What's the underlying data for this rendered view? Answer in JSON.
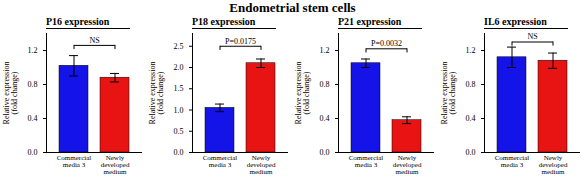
{
  "title": "Endometrial stem cells",
  "chart_data": [
    {
      "type": "bar",
      "title": "P16 expression",
      "ylabel": "Relative expression\n(fold change)",
      "categories": [
        "Commercial\nmedia 3",
        "Newly\ndeveloped\nmedium"
      ],
      "values": [
        1.02,
        0.88
      ],
      "errors": [
        0.12,
        0.05
      ],
      "colors": [
        "#1414e8",
        "#e81414"
      ],
      "ylim": [
        0,
        1.4
      ],
      "yticks": [
        {
          "value": 0.0,
          "label": "0.0"
        },
        0.4,
        0.8,
        1.2
      ],
      "grid": false,
      "annotations": [
        {
          "text": "NS",
          "y": 1.29,
          "line_y": 1.26
        }
      ]
    },
    {
      "type": "bar",
      "title": "P18 expression",
      "ylabel": "Relative expression\n(fold change)",
      "categories": [
        "Commercial\nmedia 3",
        "Newly\ndeveloped\nmedium"
      ],
      "values": [
        1.05,
        2.1
      ],
      "errors": [
        0.09,
        0.1
      ],
      "colors": [
        "#1414e8",
        "#e81414"
      ],
      "ylim": [
        0,
        2.8
      ],
      "yticks": [
        {
          "value": 0.0,
          "label": "0.0"
        },
        0.5,
        {
          "value": 1.0,
          "label": "1.0"
        },
        1.5,
        {
          "value": 2.0,
          "label": "2.0"
        },
        2.5
      ],
      "grid": false,
      "annotations": [
        {
          "text": "P=0.0175",
          "y": 2.55,
          "line_y": 2.5
        }
      ]
    },
    {
      "type": "bar",
      "title": "P21 expression",
      "ylabel": "Relative expression\n(fold change)",
      "categories": [
        "Commercial\nmedia 3",
        "Newly\ndeveloped\nmedium"
      ],
      "values": [
        1.05,
        0.38
      ],
      "errors": [
        0.05,
        0.04
      ],
      "colors": [
        "#1414e8",
        "#e81414"
      ],
      "ylim": [
        0,
        1.4
      ],
      "yticks": [
        {
          "value": 0.0,
          "label": "0.0"
        },
        0.4,
        0.8,
        1.2
      ],
      "grid": false,
      "annotations": [
        {
          "text": "P=0.0032",
          "y": 1.25,
          "line_y": 1.22
        }
      ]
    },
    {
      "type": "bar",
      "title": "IL6 expression",
      "ylabel": "Relative expression\n(fold change)",
      "categories": [
        "Commercial\nmedia 3",
        "Newly\ndeveloped\nmedium"
      ],
      "values": [
        1.12,
        1.08
      ],
      "errors": [
        0.12,
        0.09
      ],
      "colors": [
        "#1414e8",
        "#e81414"
      ],
      "ylim": [
        0,
        1.4
      ],
      "yticks": [
        {
          "value": 0.0,
          "label": "0.0"
        },
        0.4,
        0.8,
        1.2
      ],
      "grid": false,
      "annotations": [
        {
          "text": "NS",
          "y": 1.33,
          "line_y": 1.3
        }
      ]
    }
  ]
}
